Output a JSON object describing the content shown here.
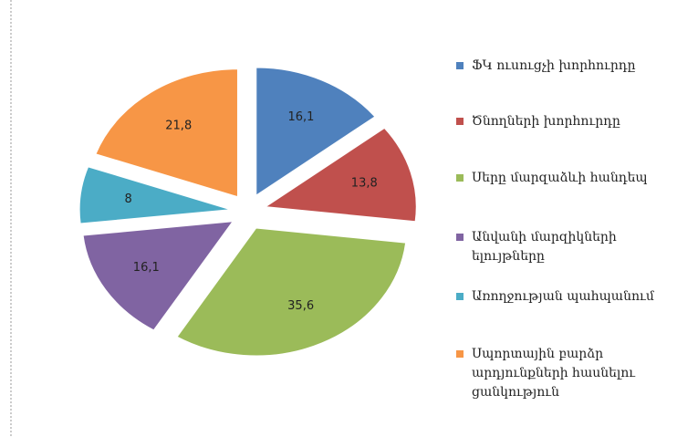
{
  "chart_data": {
    "type": "pie",
    "categories": [
      "ՖԿ ուսուցչի խորհուրդը",
      "Ծնողների խորհուրդը",
      "Սերը մարզաձևի հանդեպ",
      "Անվանի մարզիկների ելույթները",
      "Առողջության պահպանում",
      "Սպորտային բարձր արդյունքների հասնելու ցանկություն"
    ],
    "values": [
      16.1,
      13.8,
      35.6,
      16.1,
      8,
      21.8
    ],
    "value_labels": [
      "16,1",
      "13,8",
      "35,6",
      "16,1",
      "8",
      "21,8"
    ],
    "colors": [
      "#4f81bd",
      "#c0504d",
      "#9bbb59",
      "#8064a2",
      "#4bacc6",
      "#f79646"
    ],
    "legend": "right"
  }
}
